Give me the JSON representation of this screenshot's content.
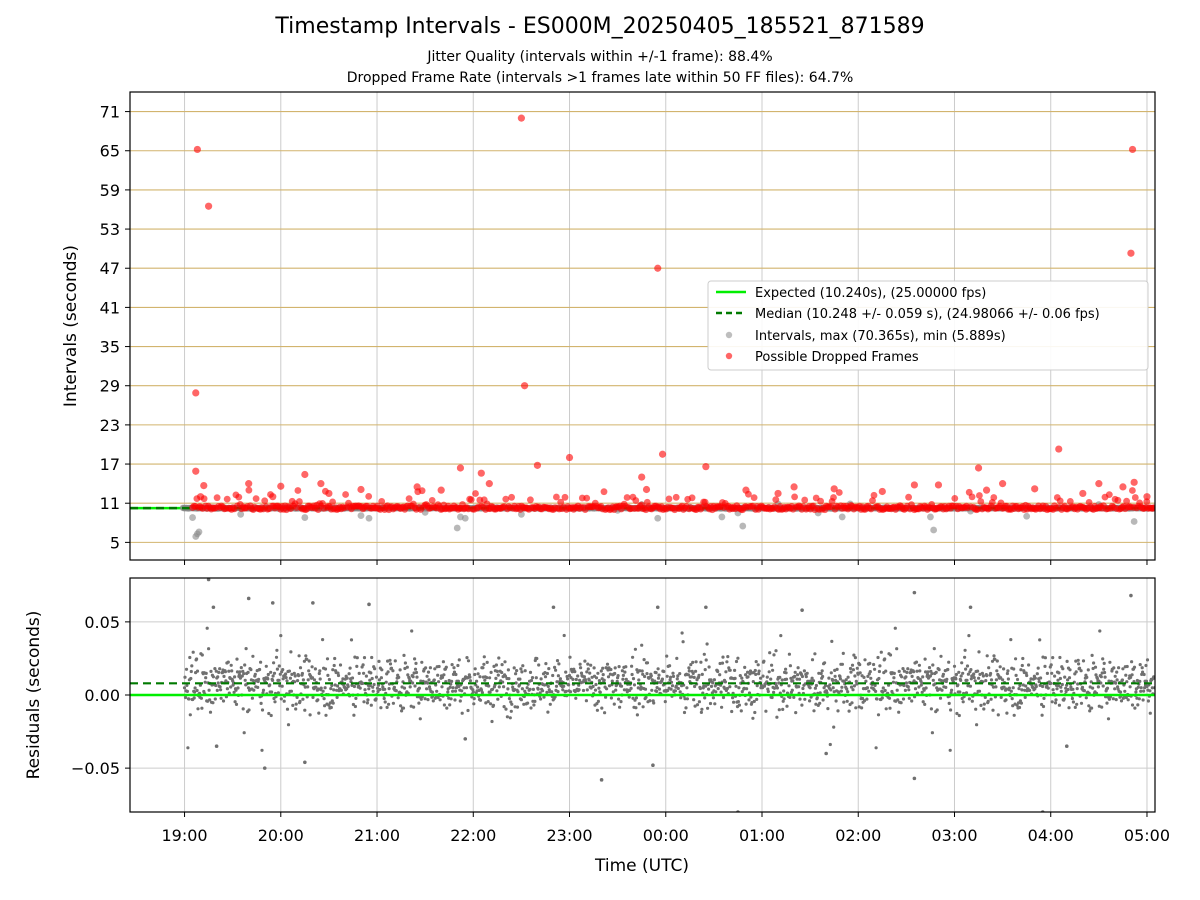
{
  "figure": {
    "title": "Timestamp Intervals - ES000M_20250405_185521_871589",
    "subtitle_1": "Jitter Quality (intervals within +/-1 frame): 88.4%",
    "subtitle_2": "Dropped Frame Rate (intervals >1 frames late within 50 FF files): 64.7%"
  },
  "colors": {
    "expected": "#00ee00",
    "median": "#007a00",
    "intervals": "#888888",
    "dropped": "#ff0000",
    "interval_grid": "#d2b46e",
    "grid": "#cccccc",
    "residual_points": "#707070"
  },
  "chart_data": [
    {
      "type": "scatter",
      "xlabel": "",
      "ylabel": "Intervals (seconds)",
      "x_range": [
        "18:26",
        "05:05"
      ],
      "ylim": [
        2.3,
        74.0
      ],
      "yticks": [
        5,
        11,
        17,
        23,
        29,
        35,
        41,
        47,
        53,
        59,
        65,
        71
      ],
      "grid": "on",
      "legend_placement": "center-right",
      "legend": [
        "Expected (10.240s), (25.00000 fps)",
        "Median (10.248 +/- 0.059 s), (24.98066 +/- 0.06 fps)",
        "Intervals, max (70.365s), min (5.889s)",
        "Possible Dropped Frames"
      ],
      "expected_interval": 10.24,
      "median_interval": 10.248,
      "intervals_max": 70.365,
      "intervals_min": 5.889,
      "series": [
        {
          "name": "Intervals, max (70.365s), min (5.889s)",
          "points": [
            [
              "19:05",
              8.8
            ],
            [
              "19:07",
              5.9
            ],
            [
              "19:08",
              6.3
            ],
            [
              "19:09",
              6.6
            ],
            [
              "19:35",
              9.3
            ],
            [
              "20:15",
              8.8
            ],
            [
              "20:50",
              9.1
            ],
            [
              "20:55",
              8.7
            ],
            [
              "21:30",
              9.6
            ],
            [
              "21:50",
              7.2
            ],
            [
              "21:52",
              8.9
            ],
            [
              "21:55",
              8.7
            ],
            [
              "22:30",
              9.3
            ],
            [
              "23:30",
              9.9
            ],
            [
              "23:45",
              10.8
            ],
            [
              "23:55",
              8.7
            ],
            [
              "00:15",
              10.4
            ],
            [
              "00:35",
              8.9
            ],
            [
              "00:45",
              9.5
            ],
            [
              "00:48",
              7.5
            ],
            [
              "01:10",
              10.9
            ],
            [
              "01:35",
              9.5
            ],
            [
              "01:50",
              8.9
            ],
            [
              "01:55",
              10.9
            ],
            [
              "02:45",
              8.9
            ],
            [
              "02:47",
              6.9
            ],
            [
              "03:10",
              9.8
            ],
            [
              "03:45",
              9.0
            ],
            [
              "04:30",
              10.8
            ],
            [
              "04:52",
              8.2
            ]
          ]
        },
        {
          "name": "Possible Dropped Frames",
          "points": [
            [
              "19:08",
              65.2
            ],
            [
              "19:07",
              27.9
            ],
            [
              "19:15",
              56.5
            ],
            [
              "19:07",
              15.9
            ],
            [
              "19:10",
              12.0
            ],
            [
              "19:12",
              13.7
            ],
            [
              "19:40",
              14.0
            ],
            [
              "19:55",
              12.0
            ],
            [
              "20:00",
              13.6
            ],
            [
              "20:15",
              15.4
            ],
            [
              "20:25",
              14.0
            ],
            [
              "20:30",
              12.5
            ],
            [
              "20:50",
              13.1
            ],
            [
              "21:25",
              13.5
            ],
            [
              "21:40",
              13.0
            ],
            [
              "21:52",
              16.4
            ],
            [
              "22:05",
              15.6
            ],
            [
              "22:10",
              14.0
            ],
            [
              "22:30",
              70.0
            ],
            [
              "22:32",
              29.0
            ],
            [
              "22:40",
              16.8
            ],
            [
              "23:00",
              18.0
            ],
            [
              "23:45",
              15.0
            ],
            [
              "23:48",
              13.1
            ],
            [
              "23:55",
              47.0
            ],
            [
              "23:58",
              18.5
            ],
            [
              "00:25",
              16.6
            ],
            [
              "00:50",
              13.0
            ],
            [
              "01:10",
              12.5
            ],
            [
              "01:20",
              13.5
            ],
            [
              "01:45",
              13.2
            ],
            [
              "02:15",
              12.8
            ],
            [
              "02:35",
              13.8
            ],
            [
              "02:50",
              13.8
            ],
            [
              "03:15",
              16.4
            ],
            [
              "03:20",
              13.0
            ],
            [
              "03:30",
              14.0
            ],
            [
              "03:50",
              13.2
            ],
            [
              "04:05",
              19.3
            ],
            [
              "04:20",
              12.5
            ],
            [
              "04:30",
              14.0
            ],
            [
              "04:45",
              13.5
            ],
            [
              "04:50",
              49.3
            ],
            [
              "04:51",
              65.2
            ],
            [
              "04:52",
              14.2
            ],
            [
              "05:00",
              12.0
            ]
          ],
          "dense_band": {
            "x_range": [
              "19:05",
              "05:05"
            ],
            "y_range": [
              10.0,
              10.6
            ]
          }
        }
      ]
    },
    {
      "type": "scatter",
      "xlabel": "Time (UTC)",
      "ylabel": "Residuals (seconds)",
      "x_range": [
        "18:26",
        "05:05"
      ],
      "ylim": [
        -0.08,
        0.08
      ],
      "yticks": [
        0.05,
        0.0,
        -0.05
      ],
      "ytick_labels": [
        "0.05",
        "0.00",
        "−0.05"
      ],
      "xticks": [
        "19:00",
        "20:00",
        "21:00",
        "22:00",
        "23:00",
        "00:00",
        "01:00",
        "02:00",
        "03:00",
        "04:00",
        "05:00"
      ],
      "grid": "on",
      "expected_residual": 0.0,
      "median_residual": 0.008,
      "series": [
        {
          "name": "",
          "x_range": [
            "19:00",
            "05:05"
          ],
          "center": 0.008,
          "typical_spread": 0.015,
          "points": [
            [
              "19:15",
              0.079
            ],
            [
              "19:18",
              0.06
            ],
            [
              "19:40",
              0.066
            ],
            [
              "19:55",
              0.063
            ],
            [
              "20:20",
              0.063
            ],
            [
              "20:55",
              0.062
            ],
            [
              "19:50",
              -0.05
            ],
            [
              "20:15",
              -0.046
            ],
            [
              "22:50",
              0.06
            ],
            [
              "23:20",
              -0.058
            ],
            [
              "23:55",
              0.06
            ],
            [
              "23:52",
              -0.048
            ],
            [
              "00:25",
              0.06
            ],
            [
              "00:45",
              -0.08
            ],
            [
              "01:25",
              0.058
            ],
            [
              "02:35",
              0.07
            ],
            [
              "02:35",
              -0.057
            ],
            [
              "03:10",
              0.06
            ],
            [
              "03:55",
              -0.08
            ],
            [
              "04:50",
              0.068
            ],
            [
              "19:20",
              -0.035
            ],
            [
              "21:55",
              -0.03
            ],
            [
              "01:40",
              -0.04
            ],
            [
              "04:10",
              -0.035
            ]
          ]
        }
      ]
    }
  ]
}
